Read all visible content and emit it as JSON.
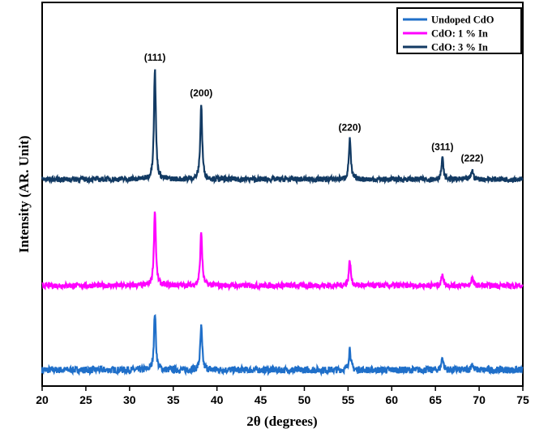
{
  "chart_data": {
    "type": "line",
    "title": "",
    "xlabel": "2θ (degrees)",
    "ylabel": "Intensity (AR. Unit)",
    "xlim": [
      20,
      75
    ],
    "ylim": [
      0,
      100
    ],
    "xticks": [
      20,
      25,
      30,
      35,
      40,
      45,
      50,
      55,
      60,
      65,
      70,
      75
    ],
    "grid": false,
    "legend_position": "top-right",
    "peak_positions": [
      32.9,
      38.2,
      55.2,
      65.8,
      69.2
    ],
    "peak_labels": [
      {
        "text": "(111)",
        "x": 32.9
      },
      {
        "text": "(200)",
        "x": 38.2
      },
      {
        "text": "(220)",
        "x": 55.2
      },
      {
        "text": "(311)",
        "x": 65.8
      },
      {
        "text": "(222)",
        "x": 69.2
      }
    ],
    "series": [
      {
        "name": "Undoped CdO",
        "color": "#1f6fc9",
        "baseline": 4.2,
        "noise": 0.9,
        "peak_heights": [
          15,
          11.2,
          5.7,
          3.4,
          1.7
        ]
      },
      {
        "name": "CdO: 1 % In",
        "color": "#ff00ff",
        "baseline": 26.2,
        "noise": 0.7,
        "peak_heights": [
          19.7,
          14,
          6.6,
          3.2,
          2.1
        ]
      },
      {
        "name": "CdO: 3 % In",
        "color": "#123a63",
        "baseline": 53.9,
        "noise": 0.7,
        "peak_heights": [
          28.8,
          19.5,
          10.6,
          5.5,
          2.5
        ]
      }
    ]
  }
}
